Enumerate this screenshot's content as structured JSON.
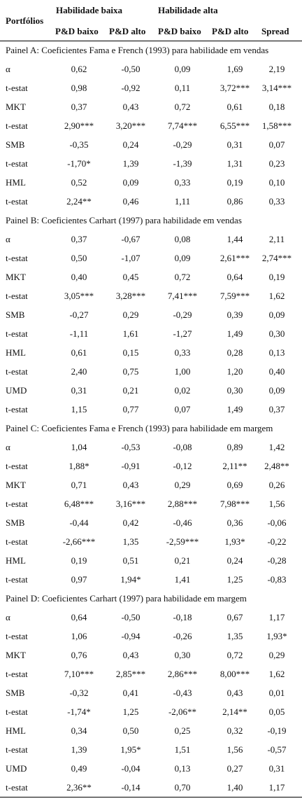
{
  "header": {
    "portfolios": "Portfólios",
    "group_low": "Habilidade baixa",
    "group_high": "Habilidade alta",
    "columns": [
      "P&D baixo",
      "P&D alto",
      "P&D baixo",
      "P&D alto",
      "Spread"
    ]
  },
  "panels": [
    {
      "title": "Painel A: Coeficientes Fama e French (1993) para habilidade em vendas",
      "rows": [
        {
          "label": "α",
          "values": [
            "0,62",
            "-0,50",
            "0,09",
            "1,69",
            "2,19"
          ]
        },
        {
          "label": "t-estat",
          "values": [
            "0,98",
            "-0,92",
            "0,11",
            "3,72***",
            "3,14***"
          ]
        },
        {
          "label": "MKT",
          "values": [
            "0,37",
            "0,43",
            "0,72",
            "0,61",
            "0,18"
          ]
        },
        {
          "label": "t-estat",
          "values": [
            "2,90***",
            "3,20***",
            "7,74***",
            "6,55***",
            "1,58***"
          ]
        },
        {
          "label": "SMB",
          "values": [
            "-0,35",
            "0,24",
            "-0,29",
            "0,31",
            "0,07"
          ]
        },
        {
          "label": "t-estat",
          "values": [
            "-1,70*",
            "1,39",
            "-1,39",
            "1,31",
            "0,23"
          ]
        },
        {
          "label": "HML",
          "values": [
            "0,52",
            "0,09",
            "0,33",
            "0,19",
            "0,10"
          ]
        },
        {
          "label": "t-estat",
          "values": [
            "2,24**",
            "0,46",
            "1,11",
            "0,86",
            "0,33"
          ]
        }
      ]
    },
    {
      "title": "Painel B: Coeficientes Carhart (1997) para habilidade em vendas",
      "rows": [
        {
          "label": "α",
          "values": [
            "0,37",
            "-0,67",
            "0,08",
            "1,44",
            "2,11"
          ]
        },
        {
          "label": "t-estat",
          "values": [
            "0,50",
            "-1,07",
            "0,09",
            "2,61***",
            "2,74***"
          ]
        },
        {
          "label": "MKT",
          "values": [
            "0,40",
            "0,45",
            "0,72",
            "0,64",
            "0,19"
          ]
        },
        {
          "label": "t-estat",
          "values": [
            "3,05***",
            "3,28***",
            "7,41***",
            "7,59***",
            "1,62"
          ]
        },
        {
          "label": "SMB",
          "values": [
            "-0,27",
            "0,29",
            "-0,29",
            "0,39",
            "0,09"
          ]
        },
        {
          "label": "t-estat",
          "values": [
            "-1,11",
            "1,61",
            "-1,27",
            "1,49",
            "0,30"
          ]
        },
        {
          "label": "HML",
          "values": [
            "0,61",
            "0,15",
            "0,33",
            "0,28",
            "0,13"
          ]
        },
        {
          "label": "t-estat",
          "values": [
            "2,40",
            "0,75",
            "1,00",
            "1,20",
            "0,40"
          ]
        },
        {
          "label": "UMD",
          "values": [
            "0,31",
            "0,21",
            "0,02",
            "0,30",
            "0,09"
          ]
        },
        {
          "label": "t-estat",
          "values": [
            "1,15",
            "0,77",
            "0,07",
            "1,49",
            "0,37"
          ]
        }
      ]
    },
    {
      "title": "Painel C: Coeficientes Fama e French (1993) para habilidade em margem",
      "rows": [
        {
          "label": "α",
          "values": [
            "1,04",
            "-0,53",
            "-0,08",
            "0,89",
            "1,42"
          ]
        },
        {
          "label": "t-estat",
          "values": [
            "1,88*",
            "-0,91",
            "-0,12",
            "2,11**",
            "2,48**"
          ]
        },
        {
          "label": "MKT",
          "values": [
            "0,71",
            "0,43",
            "0,29",
            "0,69",
            "0,26"
          ]
        },
        {
          "label": "t-estat",
          "values": [
            "6,48***",
            "3,16***",
            "2,88***",
            "7,98***",
            "1,56"
          ]
        },
        {
          "label": "SMB",
          "values": [
            "-0,44",
            "0,42",
            "-0,46",
            "0,36",
            "-0,06"
          ]
        },
        {
          "label": "t-estat",
          "values": [
            "-2,66***",
            "1,35",
            "-2,59***",
            "1,93*",
            "-0,22"
          ]
        },
        {
          "label": "HML",
          "values": [
            "0,19",
            "0,51",
            "0,21",
            "0,24",
            "-0,28"
          ]
        },
        {
          "label": "t-estat",
          "values": [
            "0,97",
            "1,94*",
            "1,41",
            "1,25",
            "-0,83"
          ]
        }
      ]
    },
    {
      "title": "Painel D: Coeficientes Carhart (1997) para habilidade em margem",
      "rows": [
        {
          "label": "α",
          "values": [
            "0,64",
            "-0,50",
            "-0,18",
            "0,67",
            "1,17"
          ]
        },
        {
          "label": "t-estat",
          "values": [
            "1,06",
            "-0,94",
            "-0,26",
            "1,35",
            "1,93*"
          ]
        },
        {
          "label": "MKT",
          "values": [
            "0,76",
            "0,43",
            "0,30",
            "0,72",
            "0,29"
          ]
        },
        {
          "label": "t-estat",
          "values": [
            "7,10***",
            "2,85***",
            "2,86***",
            "8,00***",
            "1,62"
          ]
        },
        {
          "label": "SMB",
          "values": [
            "-0,32",
            "0,41",
            "-0,43",
            "0,43",
            "0,01"
          ]
        },
        {
          "label": "t-estat",
          "values": [
            "-1,74*",
            "1,25",
            "-2,06**",
            "2,14**",
            "0,05"
          ]
        },
        {
          "label": "HML",
          "values": [
            "0,34",
            "0,50",
            "0,25",
            "0,32",
            "-0,19"
          ]
        },
        {
          "label": "t-estat",
          "values": [
            "1,39",
            "1,95*",
            "1,51",
            "1,56",
            "-0,57"
          ]
        },
        {
          "label": "UMD",
          "values": [
            "0,49",
            "-0,04",
            "0,13",
            "0,27",
            "0,31"
          ]
        },
        {
          "label": "t-estat",
          "values": [
            "2,36**",
            "-0,14",
            "0,70",
            "1,40",
            "1,17"
          ]
        }
      ]
    }
  ]
}
